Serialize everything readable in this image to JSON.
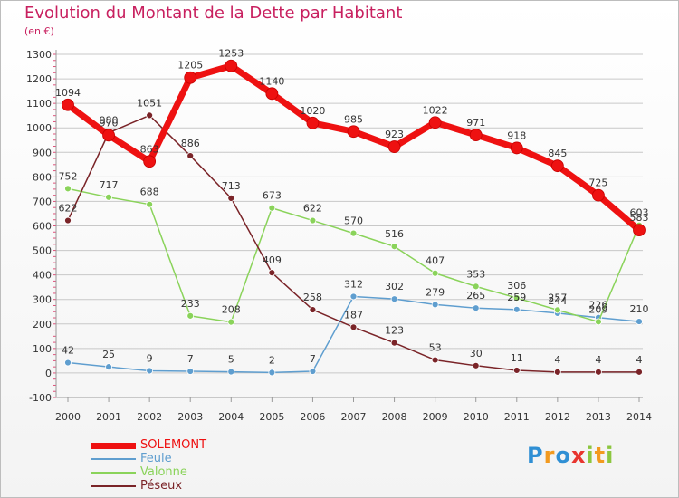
{
  "title": "Evolution du Montant de la Dette par Habitant",
  "subtitle": "(en €)",
  "colors": {
    "title": "#c8205f",
    "grid": "#c8c8c8",
    "axis": "#9a9a9a"
  },
  "chart_data": {
    "type": "line",
    "title": "Evolution du Montant de la Dette par Habitant",
    "subtitle": "(en €)",
    "xlabel": "",
    "ylabel": "",
    "ylim": [
      -100,
      1300
    ],
    "yticks": [
      -100,
      0,
      100,
      200,
      300,
      400,
      500,
      600,
      700,
      800,
      900,
      1000,
      1100,
      1200,
      1300
    ],
    "categories": [
      "2000",
      "2001",
      "2002",
      "2003",
      "2004",
      "2005",
      "2006",
      "2007",
      "2008",
      "2009",
      "2010",
      "2011",
      "2012",
      "2013",
      "2014"
    ],
    "grid": "horizontal",
    "legend_position": "bottom-left",
    "series": [
      {
        "name": "SOLEMONT",
        "color": "#ee1111",
        "width": 7,
        "values": [
          1094,
          970,
          863,
          1205,
          1253,
          1140,
          1020,
          985,
          923,
          1022,
          971,
          918,
          845,
          725,
          583
        ]
      },
      {
        "name": "Feule",
        "color": "#5f9ecf",
        "width": 1.5,
        "values": [
          42,
          25,
          9,
          7,
          5,
          2,
          7,
          312,
          302,
          279,
          265,
          259,
          244,
          226,
          210
        ]
      },
      {
        "name": "Valonne",
        "color": "#8ad35a",
        "width": 1.5,
        "values": [
          752,
          717,
          688,
          233,
          208,
          673,
          622,
          570,
          516,
          407,
          353,
          306,
          257,
          209,
          603
        ]
      },
      {
        "name": "Péseux",
        "color": "#7a2428",
        "width": 1.5,
        "values": [
          622,
          980,
          1051,
          886,
          713,
          409,
          258,
          187,
          123,
          53,
          30,
          11,
          4,
          4,
          4
        ]
      }
    ]
  },
  "legend": [
    {
      "label": "SOLEMONT",
      "color": "#ee1111",
      "thick": 7
    },
    {
      "label": "Feule",
      "color": "#5f9ecf",
      "thick": 2
    },
    {
      "label": "Valonne",
      "color": "#8ad35a",
      "thick": 2
    },
    {
      "label": "Péseux",
      "color": "#7a2428",
      "thick": 2
    }
  ],
  "logo": {
    "text": "Proxiti",
    "letters": [
      {
        "ch": "P",
        "color": "#2f8fd4"
      },
      {
        "ch": "r",
        "color": "#f29a1f"
      },
      {
        "ch": "o",
        "color": "#2f8fd4"
      },
      {
        "ch": "x",
        "color": "#e8352f"
      },
      {
        "ch": "i",
        "color": "#8cc63f"
      },
      {
        "ch": "t",
        "color": "#f29a1f"
      },
      {
        "ch": "i",
        "color": "#8cc63f"
      }
    ]
  }
}
